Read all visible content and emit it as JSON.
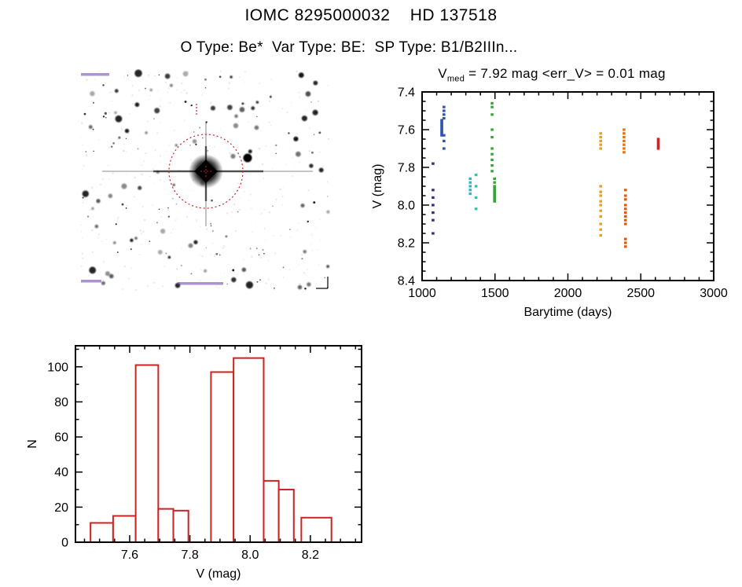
{
  "page": {
    "title": "IOMC 8295000032    HD 137518",
    "subtitle": "O Type: Be*  Var Type: BE:  SP Type: B1/B2IIIn..."
  },
  "finding_chart": {
    "description": "negative star-field finding chart with target circled",
    "background": "#ffffff",
    "star_color": "#000000",
    "target_marker_color": "#cc2222",
    "annotation_color": "#6a3aa8"
  },
  "chart_data": [
    {
      "type": "scatter",
      "title": "V_med = 7.92 mag <err_V> = 0.01 mag",
      "title_prefix": "V",
      "title_sub": "med",
      "title_rest": " = 7.92 mag <err_V> = 0.01 mag",
      "xlabel": "Barytime (days)",
      "ylabel": "V (mag)",
      "xlim": [
        1000,
        3000
      ],
      "ylim": [
        7.4,
        8.4
      ],
      "y_inverted": true,
      "grid": false,
      "legend": "none",
      "xticks": [
        "1000",
        "1500",
        "2000",
        "2500",
        "3000"
      ],
      "yticks": [
        "7.4",
        "7.6",
        "7.8",
        "8.0",
        "8.2",
        "8.4"
      ],
      "x_minor_step": 100,
      "y_minor_step": 0.05,
      "series": [
        {
          "name": "epoch-1",
          "color": "#3b2a78",
          "x": 1075,
          "mags": [
            7.78,
            7.92,
            7.96,
            8.0,
            8.04,
            8.08,
            8.15
          ]
        },
        {
          "name": "epoch-2a",
          "color": "#2d55b2",
          "x": 1135,
          "mags": [
            7.55,
            7.56,
            7.57,
            7.58,
            7.59,
            7.6,
            7.61,
            7.62,
            7.63
          ]
        },
        {
          "name": "epoch-2b",
          "color": "#2d55b2",
          "x": 1150,
          "mags": [
            7.48,
            7.5,
            7.52,
            7.54,
            7.63,
            7.66,
            7.7
          ]
        },
        {
          "name": "epoch-3",
          "color": "#2fb6c8",
          "x": 1330,
          "mags": [
            7.86,
            7.88,
            7.9,
            7.92,
            7.94
          ]
        },
        {
          "name": "epoch-4",
          "color": "#35c2a0",
          "x": 1370,
          "mags": [
            7.84,
            7.9,
            7.96,
            8.02
          ]
        },
        {
          "name": "epoch-5a",
          "color": "#36a53a",
          "x": 1480,
          "mags": [
            7.46,
            7.48,
            7.52,
            7.6,
            7.64,
            7.7,
            7.73,
            7.76,
            7.79,
            7.82
          ]
        },
        {
          "name": "epoch-5b",
          "color": "#36a53a",
          "x": 1497,
          "mags": [
            7.86,
            7.88,
            7.9,
            7.91,
            7.92,
            7.93,
            7.94,
            7.95,
            7.96,
            7.97,
            7.98
          ]
        },
        {
          "name": "epoch-6",
          "color": "#e8a11e",
          "x": 2225,
          "mags": [
            7.62,
            7.64,
            7.66,
            7.68,
            7.7,
            7.9,
            7.93,
            7.95,
            7.98,
            8.0,
            8.03,
            8.06,
            8.1,
            8.13,
            8.16
          ]
        },
        {
          "name": "epoch-7a",
          "color": "#e2750f",
          "x": 2385,
          "mags": [
            7.6,
            7.62,
            7.64,
            7.66,
            7.68,
            7.7,
            7.72
          ]
        },
        {
          "name": "epoch-7b",
          "color": "#d85c14",
          "x": 2395,
          "mags": [
            7.92,
            7.95,
            7.97,
            8.0,
            8.02,
            8.04,
            8.06,
            8.08,
            8.1,
            8.18,
            8.2,
            8.22
          ]
        },
        {
          "name": "epoch-8",
          "color": "#c22a2a",
          "x": 2620,
          "mags": [
            7.65,
            7.66,
            7.67,
            7.68,
            7.69,
            7.7
          ]
        }
      ]
    },
    {
      "type": "histogram",
      "xlabel": "V (mag)",
      "ylabel": "N",
      "xlim": [
        7.42,
        8.37
      ],
      "ylim": [
        0,
        112
      ],
      "grid": false,
      "legend": "none",
      "color": "#cc2222",
      "xticks": [
        "7.6",
        "7.8",
        "8.0",
        "8.2"
      ],
      "yticks": [
        "0",
        "20",
        "40",
        "60",
        "80",
        "100"
      ],
      "x_minor_step": 0.05,
      "y_minor_step": 10,
      "bars": [
        [
          7.47,
          7.545,
          11
        ],
        [
          7.545,
          7.62,
          15
        ],
        [
          7.62,
          7.695,
          101
        ],
        [
          7.695,
          7.745,
          19
        ],
        [
          7.745,
          7.795,
          18
        ],
        [
          7.87,
          7.945,
          97
        ],
        [
          7.945,
          8.045,
          105
        ],
        [
          8.045,
          8.095,
          35
        ],
        [
          8.095,
          8.145,
          30
        ],
        [
          8.17,
          8.27,
          14
        ]
      ]
    }
  ]
}
